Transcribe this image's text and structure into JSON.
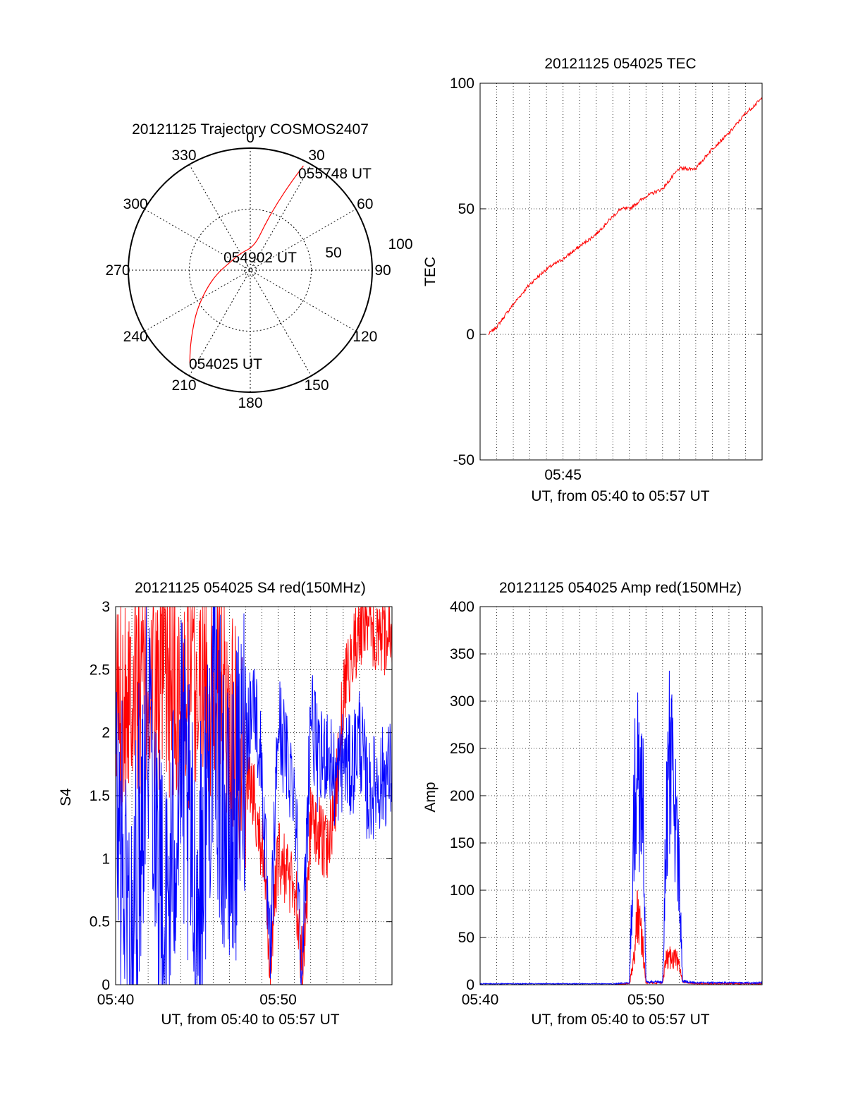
{
  "chart_data": [
    {
      "type": "polar",
      "title": "20121125 Trajectory COSMOS2407",
      "angle_labels": [
        "0",
        "30",
        "60",
        "90",
        "120",
        "150",
        "180",
        "210",
        "240",
        "270",
        "300",
        "330"
      ],
      "radial_labels": [
        "50",
        "100"
      ],
      "rlim": [
        0,
        100
      ],
      "grid": true,
      "series": [
        {
          "color": "#ff0000",
          "points": [
            {
              "az": 213,
              "r": 91
            },
            {
              "az": 218,
              "r": 80
            },
            {
              "az": 224,
              "r": 68
            },
            {
              "az": 233,
              "r": 55
            },
            {
              "az": 246,
              "r": 40
            },
            {
              "az": 263,
              "r": 28
            },
            {
              "az": 290,
              "r": 18
            },
            {
              "az": 330,
              "r": 16
            },
            {
              "az": 10,
              "r": 20
            },
            {
              "az": 18,
              "r": 40
            },
            {
              "az": 22,
              "r": 60
            },
            {
              "az": 25,
              "r": 80
            },
            {
              "az": 27,
              "r": 96
            }
          ]
        }
      ],
      "annotations": [
        {
          "text": "055748 UT"
        },
        {
          "text": "054902 UT"
        },
        {
          "text": "054025 UT"
        }
      ]
    },
    {
      "type": "line",
      "title": "20121125 054025 TEC",
      "xlabel": "UT, from 05:40 to 05:57 UT",
      "ylabel": "TEC",
      "xlim": [
        "05:40",
        "05:57"
      ],
      "ylim": [
        -50,
        100
      ],
      "xticks": [
        "05:45"
      ],
      "yticks": [
        -50,
        0,
        50,
        100
      ],
      "grid": true,
      "series": [
        {
          "color": "#ff0000",
          "x": [
            "05:40.5",
            "05:41",
            "05:42",
            "05:43",
            "05:44",
            "05:45",
            "05:46",
            "05:47",
            "05:48",
            "05:48.5",
            "05:49",
            "05:50",
            "05:51",
            "05:52",
            "05:52.5",
            "05:53",
            "05:54",
            "05:55",
            "05:56",
            "05:57"
          ],
          "y": [
            0,
            3,
            12,
            20,
            26,
            30,
            35,
            40,
            47,
            50,
            50,
            55,
            58,
            66,
            66,
            66,
            74,
            80,
            88,
            94
          ]
        }
      ]
    },
    {
      "type": "line",
      "title": "20121125 054025 S4 red(150MHz)",
      "xlabel": "UT, from 05:40 to 05:57 UT",
      "ylabel": "S4",
      "xlim": [
        "05:40",
        "05:57"
      ],
      "ylim": [
        0,
        3
      ],
      "xticks": [
        "05:40",
        "05:50"
      ],
      "yticks": [
        "0",
        "0.5",
        "1",
        "1.5",
        "2",
        "2.5",
        "3"
      ],
      "grid": true,
      "series": [
        {
          "color": "#ff0000",
          "x": [
            "05:40",
            "05:41",
            "05:42",
            "05:43",
            "05:44",
            "05:45",
            "05:46",
            "05:47",
            "05:48",
            "05:48.5",
            "05:49",
            "05:49.5",
            "05:50",
            "05:50.5",
            "05:51",
            "05:51.5",
            "05:52",
            "05:52.5",
            "05:53",
            "05:53.5",
            "05:54",
            "05:54.5",
            "05:55",
            "05:55.5",
            "05:56",
            "05:57"
          ],
          "y": [
            2.2,
            2.5,
            2.3,
            2.4,
            2.2,
            2.3,
            2.4,
            2.1,
            1.7,
            1.5,
            1.1,
            0.15,
            1.0,
            0.9,
            0.8,
            0.1,
            1.3,
            1.2,
            1.1,
            1.4,
            2.3,
            2.6,
            2.8,
            2.9,
            2.7,
            2.8
          ]
        },
        {
          "color": "#0000ff",
          "x": [
            "05:40",
            "05:41",
            "05:42",
            "05:43",
            "05:44",
            "05:45",
            "05:46",
            "05:47",
            "05:48",
            "05:48.5",
            "05:49",
            "05:49.5",
            "05:50",
            "05:50.5",
            "05:51",
            "05:51.5",
            "05:52",
            "05:52.5",
            "05:53",
            "05:53.5",
            "05:54",
            "05:54.5",
            "05:55",
            "05:55.5",
            "05:56",
            "05:57"
          ],
          "y": [
            1.5,
            0.2,
            2.4,
            0.3,
            1.8,
            0.5,
            2.2,
            1.0,
            2.0,
            2.3,
            1.7,
            0.12,
            2.1,
            1.8,
            1.6,
            0.1,
            2.2,
            1.7,
            1.9,
            1.6,
            1.8,
            1.7,
            2.0,
            1.5,
            1.6,
            1.7
          ]
        }
      ]
    },
    {
      "type": "line",
      "title": "20121125 054025 Amp red(150MHz)",
      "xlabel": "UT, from 05:40 to 05:57 UT",
      "ylabel": "Amp",
      "xlim": [
        "05:40",
        "05:57"
      ],
      "ylim": [
        0,
        400
      ],
      "xticks": [
        "05:40",
        "05:50"
      ],
      "yticks": [
        0,
        50,
        100,
        150,
        200,
        250,
        300,
        350,
        400
      ],
      "grid": true,
      "series": [
        {
          "color": "#ff0000",
          "x": [
            "05:40",
            "05:48",
            "05:49",
            "05:49.3",
            "05:49.5",
            "05:49.8",
            "05:50",
            "05:51",
            "05:51.2",
            "05:51.5",
            "05:51.8",
            "05:52",
            "05:52.2",
            "05:53",
            "05:57"
          ],
          "y": [
            0,
            0,
            1,
            30,
            80,
            40,
            2,
            2,
            25,
            30,
            28,
            20,
            3,
            1,
            1
          ]
        },
        {
          "color": "#0000ff",
          "x": [
            "05:40",
            "05:48",
            "05:49",
            "05:49.2",
            "05:49.4",
            "05:49.6",
            "05:49.8",
            "05:50",
            "05:51",
            "05:51.2",
            "05:51.4",
            "05:51.6",
            "05:51.8",
            "05:52",
            "05:52.2",
            "05:53",
            "05:57"
          ],
          "y": [
            1,
            1,
            2,
            120,
            245,
            200,
            210,
            3,
            3,
            150,
            260,
            200,
            170,
            120,
            4,
            2,
            2
          ]
        }
      ]
    }
  ]
}
